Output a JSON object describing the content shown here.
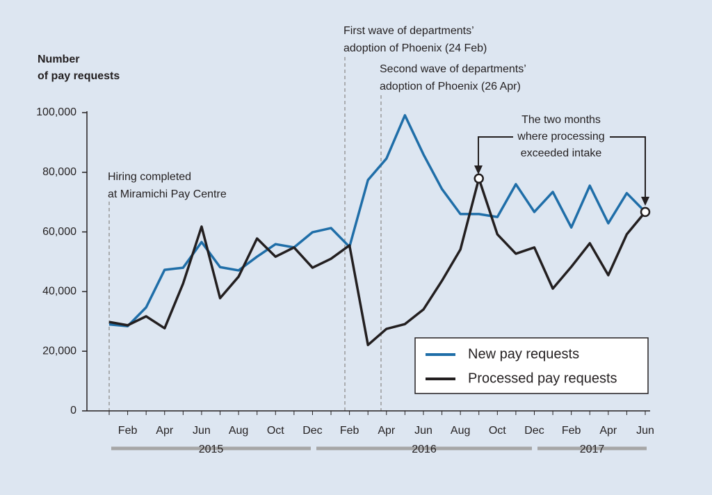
{
  "chart_data": {
    "type": "line",
    "y_label": [
      "Number",
      "of pay requests"
    ],
    "categories": [
      null,
      "Feb",
      null,
      "Apr",
      null,
      "Jun",
      null,
      "Aug",
      null,
      "Oct",
      null,
      "Dec",
      null,
      "Feb",
      null,
      "Apr",
      null,
      "Jun",
      null,
      "Aug",
      null,
      "Oct",
      null,
      "Dec",
      null,
      "Feb",
      null,
      "Apr",
      null,
      "Jun"
    ],
    "years": [
      "2015",
      "2016",
      "2017"
    ],
    "series": [
      {
        "name": "New pay requests",
        "color": "#1f6ea8",
        "values": [
          29000,
          28400,
          34700,
          47300,
          48000,
          56600,
          48200,
          47100,
          51700,
          55900,
          54800,
          59900,
          61300,
          55000,
          77400,
          84600,
          99100,
          86000,
          74400,
          66000,
          66000,
          65000,
          76000,
          66700,
          73400,
          61500,
          75500,
          62900,
          73000,
          66700
        ]
      },
      {
        "name": "Processed pay requests",
        "color": "#231f20",
        "values": [
          29800,
          28700,
          31700,
          27700,
          42700,
          61800,
          37800,
          45000,
          57800,
          51700,
          54800,
          48000,
          51000,
          55500,
          22100,
          27500,
          29100,
          34000,
          43600,
          54100,
          77900,
          59200,
          52700,
          54800,
          41000,
          48300,
          56200,
          45500,
          59200,
          66700
        ]
      }
    ],
    "ylim": [
      0,
      100000
    ],
    "yticks": [
      0,
      {
        "value": 20000,
        "label": "20,000"
      },
      {
        "value": 40000,
        "label": "40,000"
      },
      {
        "value": 60000,
        "label": "60,000"
      },
      {
        "value": 80000,
        "label": "80,000"
      },
      {
        "value": 100000,
        "label": "100,000"
      }
    ],
    "annotations": {
      "hiring": [
        "Hiring completed",
        "at Miramichi Pay Centre"
      ],
      "first_wave": [
        "First wave of departments’",
        "adoption of Phoenix (24 Feb)"
      ],
      "second_wave": [
        "Second wave of departments’",
        "adoption of Phoenix (26 Apr)"
      ],
      "exceeded": [
        "The two months",
        "where processing",
        "exceeded intake"
      ]
    },
    "legend": "lower right"
  }
}
